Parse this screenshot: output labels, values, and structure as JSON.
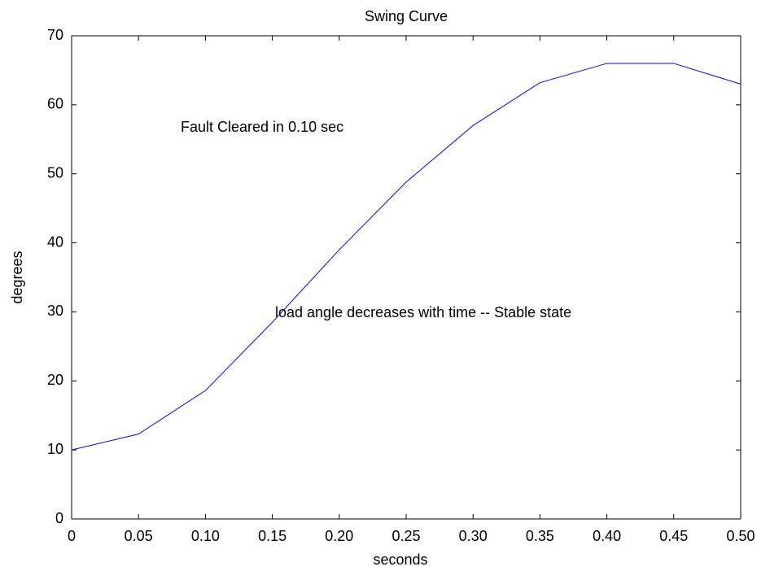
{
  "chart_data": {
    "type": "line",
    "title": "Swing Curve",
    "x_label": "seconds",
    "y_label": "degrees",
    "x": [
      0,
      0.05,
      0.1,
      0.15,
      0.2,
      0.25,
      0.3,
      0.35,
      0.4,
      0.45,
      0.5
    ],
    "values": [
      10,
      12.3,
      18.6,
      28.5,
      39,
      48.8,
      57,
      63.2,
      66,
      66,
      63
    ],
    "color": "#0000ff",
    "xlim": [
      0,
      0.5
    ],
    "xticks": [
      0,
      0.05,
      {
        "value": 0.1,
        "label": "0.10"
      },
      0.15,
      {
        "value": 0.2,
        "label": "0.20"
      },
      0.25,
      {
        "value": 0.3,
        "label": "0.30"
      },
      0.35,
      {
        "value": 0.4,
        "label": "0.40"
      },
      0.45,
      {
        "value": 0.5,
        "label": "0.50"
      }
    ],
    "ylim": [
      0,
      70
    ],
    "yticks": [
      0,
      10,
      20,
      30,
      40,
      50,
      60,
      70
    ],
    "annotations": [
      "Fault Cleared in 0.10 sec",
      "load angle decreases with time -- Stable state"
    ]
  }
}
